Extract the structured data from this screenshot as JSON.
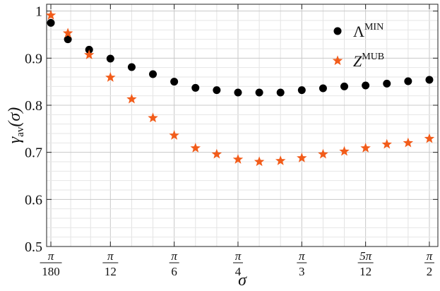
{
  "chart_data": {
    "type": "scatter",
    "title": "",
    "xlabel": "σ",
    "ylabel": {
      "main": "γ",
      "sub": "av",
      "arg": "(σ)"
    },
    "xlim": [
      0.0,
      1.6057
    ],
    "ylim": [
      0.5,
      1.0145
    ],
    "grid": true,
    "legend_position": "top-right",
    "x_ticks": [
      {
        "value": 0.017453,
        "num": "π",
        "den": "180"
      },
      {
        "value": 0.261799,
        "num": "π",
        "den": "12"
      },
      {
        "value": 0.523599,
        "num": "π",
        "den": "6"
      },
      {
        "value": 0.785398,
        "num": "π",
        "den": "4"
      },
      {
        "value": 1.047198,
        "num": "π",
        "den": "3"
      },
      {
        "value": 1.308997,
        "num": "5π",
        "den": "12"
      },
      {
        "value": 1.570796,
        "num": "π",
        "den": "2"
      }
    ],
    "y_ticks": [
      {
        "value": 0.5,
        "label": "0.5"
      },
      {
        "value": 0.6,
        "label": "0.6"
      },
      {
        "value": 0.7,
        "label": "0.7"
      },
      {
        "value": 0.8,
        "label": "0.8"
      },
      {
        "value": 0.9,
        "label": "0.9"
      },
      {
        "value": 1.0,
        "label": "1"
      }
    ],
    "x": [
      0.0175,
      0.0873,
      0.1745,
      0.2618,
      0.3491,
      0.4363,
      0.5236,
      0.6109,
      0.6981,
      0.7854,
      0.8727,
      0.9599,
      1.0472,
      1.1345,
      1.2217,
      1.309,
      1.3963,
      1.4835,
      1.5708
    ],
    "series": [
      {
        "name": "Λ",
        "name_sup": "MIN",
        "marker": "circle",
        "color": "#000000",
        "values": [
          0.975,
          0.94,
          0.918,
          0.899,
          0.881,
          0.866,
          0.85,
          0.837,
          0.832,
          0.827,
          0.827,
          0.827,
          0.832,
          0.836,
          0.84,
          0.842,
          0.846,
          0.851,
          0.854
        ]
      },
      {
        "name": "Z",
        "name_sup": "MUB",
        "marker": "star",
        "color": "#F25C1A",
        "values": [
          0.991,
          0.953,
          0.907,
          0.859,
          0.813,
          0.773,
          0.736,
          0.709,
          0.696,
          0.685,
          0.68,
          0.682,
          0.688,
          0.696,
          0.702,
          0.709,
          0.717,
          0.72,
          0.729
        ]
      }
    ]
  }
}
